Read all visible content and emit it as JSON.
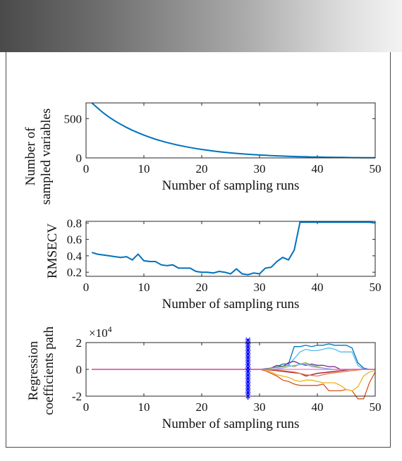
{
  "chart_data": [
    {
      "type": "line",
      "xlabel": "Number of sampling runs",
      "ylabel": [
        "Number of",
        "sampled variables"
      ],
      "xlim": [
        0,
        50
      ],
      "ylim": [
        0,
        700
      ],
      "xticks": [
        0,
        10,
        20,
        30,
        40,
        50
      ],
      "yticks": [
        0,
        500
      ],
      "color": "#0072bd",
      "x": [
        1,
        2,
        3,
        4,
        5,
        6,
        7,
        8,
        9,
        10,
        11,
        12,
        13,
        14,
        15,
        16,
        17,
        18,
        19,
        20,
        21,
        22,
        23,
        24,
        25,
        26,
        27,
        28,
        29,
        30,
        31,
        32,
        33,
        34,
        35,
        36,
        37,
        38,
        39,
        40,
        41,
        42,
        43,
        44,
        45,
        46,
        47,
        48,
        49,
        50
      ],
      "y": [
        700,
        635,
        573,
        518,
        470,
        427,
        388,
        352,
        320,
        290,
        263,
        238,
        216,
        196,
        178,
        161,
        146,
        132,
        119,
        108,
        98,
        88,
        79,
        71,
        64,
        57,
        51,
        46,
        41,
        37,
        33,
        29,
        26,
        23,
        21,
        18,
        16,
        14,
        12,
        11,
        9,
        8,
        7,
        6,
        5,
        4,
        4,
        3,
        3,
        2
      ]
    },
    {
      "type": "line",
      "xlabel": "Number of sampling runs",
      "ylabel": "RMSECV",
      "xlim": [
        0,
        50
      ],
      "ylim": [
        0.15,
        0.82
      ],
      "xticks": [
        0,
        10,
        20,
        30,
        40,
        50
      ],
      "yticks": [
        0.2,
        0.4,
        0.6,
        0.8
      ],
      "ytick_labels": [
        "0.2",
        "0.4",
        "0.6",
        "0.8"
      ],
      "color": "#0072bd",
      "x": [
        1,
        2,
        3,
        4,
        5,
        6,
        7,
        8,
        9,
        10,
        11,
        12,
        13,
        14,
        15,
        16,
        17,
        18,
        19,
        20,
        21,
        22,
        23,
        24,
        25,
        26,
        27,
        28,
        29,
        30,
        31,
        32,
        33,
        34,
        35,
        36,
        37,
        38,
        39,
        40,
        41,
        42,
        43,
        44,
        45,
        46,
        47,
        48,
        49,
        50
      ],
      "y": [
        0.44,
        0.42,
        0.41,
        0.4,
        0.39,
        0.38,
        0.39,
        0.35,
        0.42,
        0.34,
        0.33,
        0.33,
        0.29,
        0.28,
        0.29,
        0.25,
        0.25,
        0.25,
        0.21,
        0.2,
        0.2,
        0.19,
        0.21,
        0.2,
        0.18,
        0.24,
        0.18,
        0.17,
        0.19,
        0.18,
        0.25,
        0.26,
        0.33,
        0.38,
        0.35,
        0.47,
        0.81,
        0.81,
        0.81,
        0.81,
        0.81,
        0.81,
        0.81,
        0.81,
        0.81,
        0.81,
        0.81,
        0.81,
        0.81,
        0.8
      ]
    },
    {
      "type": "line",
      "xlabel": "Number of sampling runs",
      "ylabel": [
        "Regression",
        "coefficients path"
      ],
      "exponent_label": "×10",
      "exponent_power": "4",
      "xlim": [
        0,
        50
      ],
      "ylim": [
        -2,
        2
      ],
      "xticks": [
        0,
        10,
        20,
        30,
        40,
        50
      ],
      "yticks": [
        -2,
        0,
        2
      ],
      "ytick_labels": [
        "-2",
        "0",
        "2"
      ],
      "marker_run": 28,
      "marker_color": "#0000ff",
      "series": [
        {
          "color": "#0072bd",
          "points": [
            [
              1,
              0
            ],
            [
              30,
              0
            ],
            [
              32,
              0.1
            ],
            [
              33,
              0.2
            ],
            [
              34,
              0.4
            ],
            [
              35,
              0.4
            ],
            [
              36,
              1.7
            ],
            [
              37,
              1.7
            ],
            [
              38,
              1.8
            ],
            [
              39,
              1.7
            ],
            [
              40,
              1.8
            ],
            [
              41,
              1.8
            ],
            [
              42,
              1.9
            ],
            [
              43,
              1.8
            ],
            [
              44,
              1.8
            ],
            [
              45,
              1.8
            ],
            [
              46,
              1.6
            ],
            [
              47,
              0.5
            ],
            [
              48,
              0.1
            ],
            [
              49,
              0
            ],
            [
              50,
              0
            ]
          ]
        },
        {
          "color": "#4dbeee",
          "points": [
            [
              1,
              0
            ],
            [
              31,
              0
            ],
            [
              33,
              0.2
            ],
            [
              35,
              0.3
            ],
            [
              36,
              0.8
            ],
            [
              37,
              1.3
            ],
            [
              38,
              1.5
            ],
            [
              39,
              1.4
            ],
            [
              40,
              1.4
            ],
            [
              41,
              1.5
            ],
            [
              42,
              1.6
            ],
            [
              43,
              1.5
            ],
            [
              44,
              1.3
            ],
            [
              45,
              1.3
            ],
            [
              46,
              1.3
            ],
            [
              47,
              0.3
            ],
            [
              48,
              0
            ],
            [
              50,
              0
            ]
          ]
        },
        {
          "color": "#d95319",
          "points": [
            [
              1,
              0
            ],
            [
              30,
              0
            ],
            [
              31,
              -0.1
            ],
            [
              32,
              -0.3
            ],
            [
              33,
              -0.5
            ],
            [
              34,
              -0.8
            ],
            [
              35,
              -0.9
            ],
            [
              36,
              -1.1
            ],
            [
              37,
              -1.2
            ],
            [
              38,
              -1.2
            ],
            [
              39,
              -1.2
            ],
            [
              40,
              -1.2
            ],
            [
              41,
              -1.1
            ],
            [
              42,
              -1.6
            ],
            [
              43,
              -1.6
            ],
            [
              44,
              -1.6
            ],
            [
              45,
              -1.5
            ],
            [
              46,
              -1.6
            ],
            [
              47,
              -2.2
            ],
            [
              48,
              -2.2
            ],
            [
              49,
              -1.0
            ],
            [
              50,
              -0.2
            ]
          ]
        },
        {
          "color": "#edb120",
          "points": [
            [
              1,
              0
            ],
            [
              31,
              0
            ],
            [
              32,
              -0.2
            ],
            [
              33,
              -0.4
            ],
            [
              34,
              -0.5
            ],
            [
              35,
              -0.6
            ],
            [
              36,
              -0.8
            ],
            [
              37,
              -0.9
            ],
            [
              38,
              -0.8
            ],
            [
              39,
              -0.8
            ],
            [
              40,
              -0.9
            ],
            [
              41,
              -1.0
            ],
            [
              42,
              -1.0
            ],
            [
              43,
              -1.0
            ],
            [
              44,
              -1.2
            ],
            [
              45,
              -1.5
            ],
            [
              46,
              -1.6
            ],
            [
              47,
              -1.3
            ],
            [
              48,
              -0.5
            ],
            [
              49,
              -0.2
            ],
            [
              50,
              -0.1
            ]
          ]
        },
        {
          "color": "#7e2f8e",
          "points": [
            [
              1,
              0
            ],
            [
              31,
              0
            ],
            [
              32,
              0.1
            ],
            [
              33,
              0.3
            ],
            [
              34,
              0.2
            ],
            [
              35,
              0.5
            ],
            [
              36,
              0.6
            ],
            [
              37,
              0.4
            ],
            [
              38,
              0.3
            ],
            [
              39,
              0.4
            ],
            [
              40,
              0.3
            ],
            [
              41,
              0.3
            ],
            [
              42,
              0.2
            ],
            [
              43,
              0.2
            ],
            [
              44,
              0
            ],
            [
              50,
              0
            ]
          ]
        },
        {
          "color": "#77ac30",
          "points": [
            [
              1,
              0
            ],
            [
              31,
              0
            ],
            [
              32,
              0.1
            ],
            [
              34,
              0.2
            ],
            [
              35,
              0.3
            ],
            [
              36,
              0.2
            ],
            [
              37,
              0.4
            ],
            [
              38,
              0.5
            ],
            [
              39,
              0.3
            ],
            [
              40,
              0.2
            ],
            [
              41,
              0.1
            ],
            [
              42,
              0
            ],
            [
              50,
              0
            ]
          ]
        },
        {
          "color": "#a2142f",
          "points": [
            [
              1,
              0
            ],
            [
              31,
              0
            ],
            [
              33,
              -0.1
            ],
            [
              35,
              -0.2
            ],
            [
              37,
              -0.3
            ],
            [
              38,
              -0.5
            ],
            [
              39,
              -0.4
            ],
            [
              40,
              -0.3
            ],
            [
              42,
              -0.2
            ],
            [
              44,
              -0.1
            ],
            [
              46,
              0
            ],
            [
              50,
              0
            ]
          ]
        },
        {
          "color": "#80b3ff",
          "points": [
            [
              1,
              0
            ],
            [
              32,
              0
            ],
            [
              34,
              0.1
            ],
            [
              36,
              0.3
            ],
            [
              38,
              0.4
            ],
            [
              39,
              0.2
            ],
            [
              41,
              0.1
            ],
            [
              43,
              0
            ],
            [
              50,
              0
            ]
          ]
        },
        {
          "color": "#e07a3f",
          "points": [
            [
              1,
              0
            ],
            [
              32,
              0
            ],
            [
              34,
              -0.1
            ],
            [
              36,
              -0.2
            ],
            [
              38,
              -0.4
            ],
            [
              40,
              -0.5
            ],
            [
              42,
              -0.3
            ],
            [
              44,
              -0.2
            ],
            [
              46,
              -0.1
            ],
            [
              48,
              0
            ],
            [
              50,
              0
            ]
          ]
        },
        {
          "color": "#ff66cc",
          "points": [
            [
              1,
              0
            ],
            [
              50,
              0
            ]
          ]
        }
      ]
    }
  ]
}
